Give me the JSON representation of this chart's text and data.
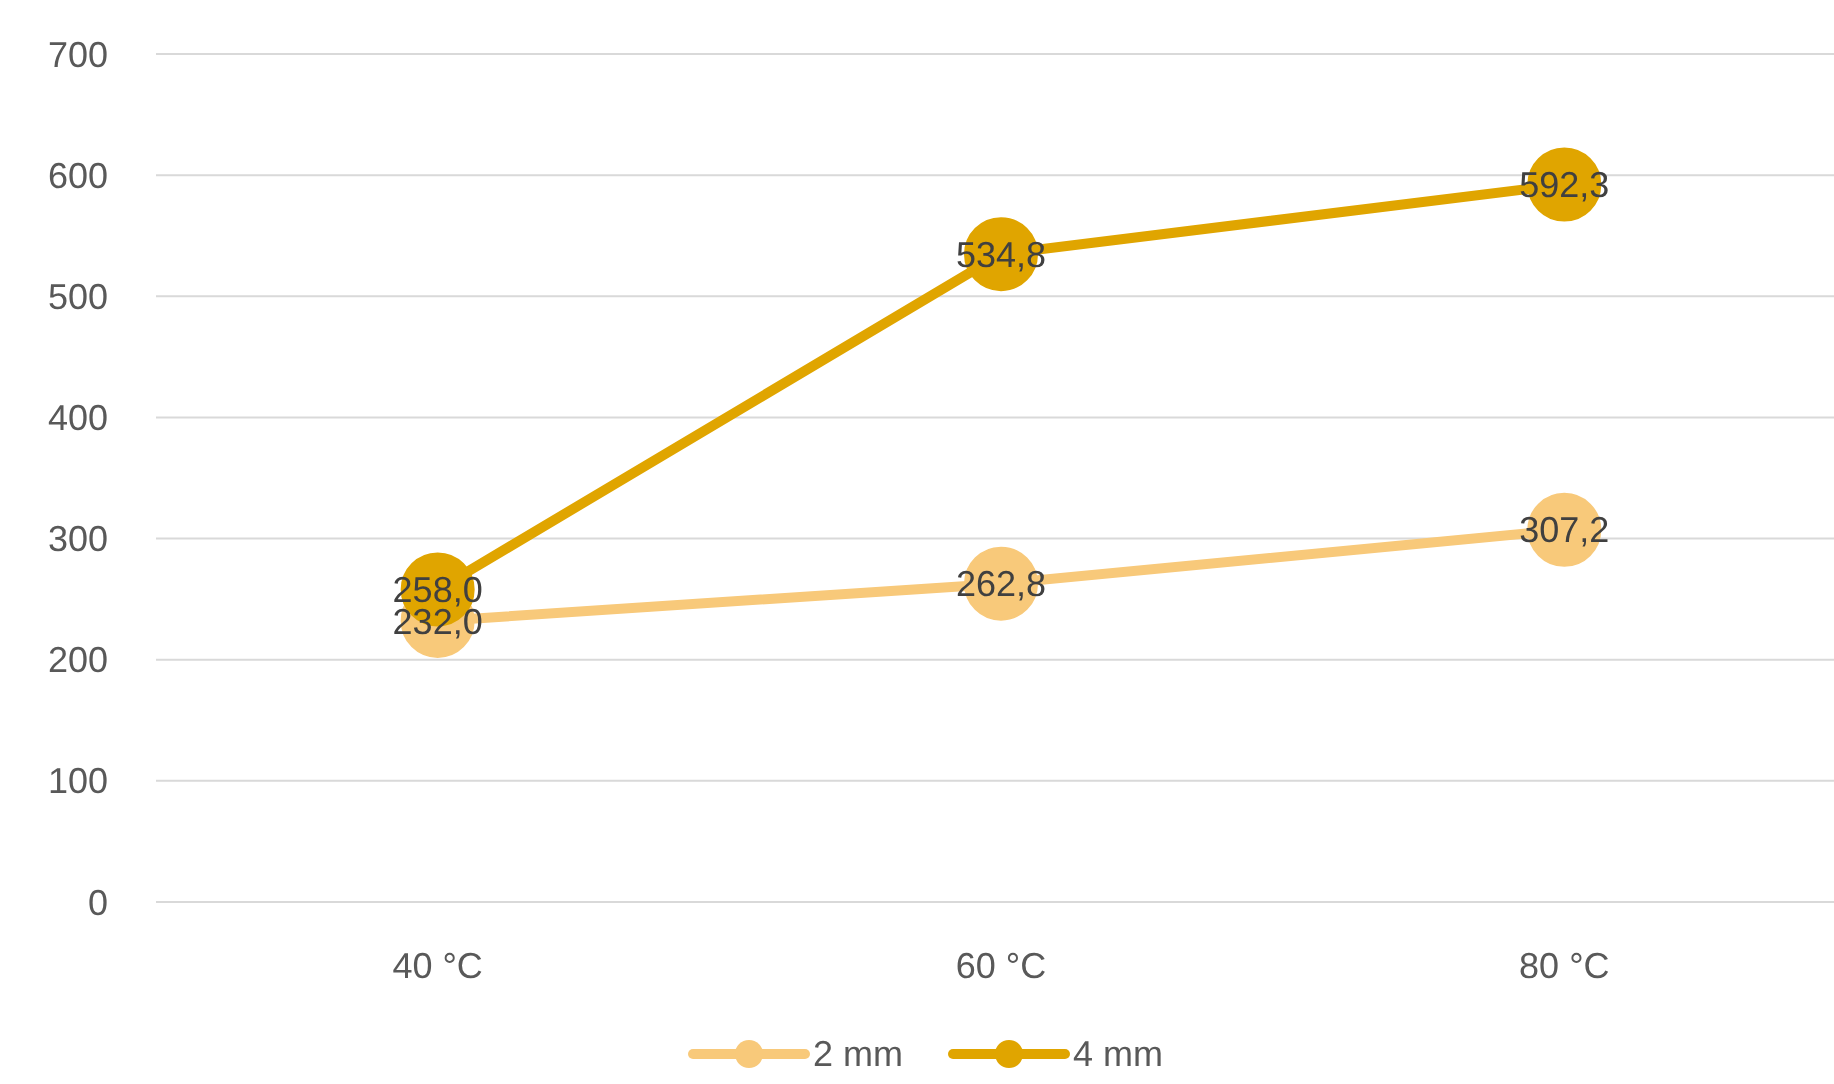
{
  "chart_data": {
    "type": "line",
    "categories": [
      "40 °C",
      "60 °C",
      "80 °C"
    ],
    "series": [
      {
        "name": "2 mm",
        "color": "#f8c97a",
        "values": [
          232.0,
          262.8,
          307.2
        ],
        "value_labels": [
          "232,0",
          "262,8",
          "307,2"
        ]
      },
      {
        "name": "4 mm",
        "color": "#e0a500",
        "values": [
          258.0,
          534.8,
          592.3
        ],
        "value_labels": [
          "258,0",
          "534,8",
          "592,3"
        ]
      }
    ],
    "ylim": [
      0,
      700
    ],
    "yticks": [
      0,
      100,
      200,
      300,
      400,
      500,
      600,
      700
    ],
    "grid": "y",
    "legend": "bottom",
    "marker": "circle",
    "line_style": "solid"
  }
}
